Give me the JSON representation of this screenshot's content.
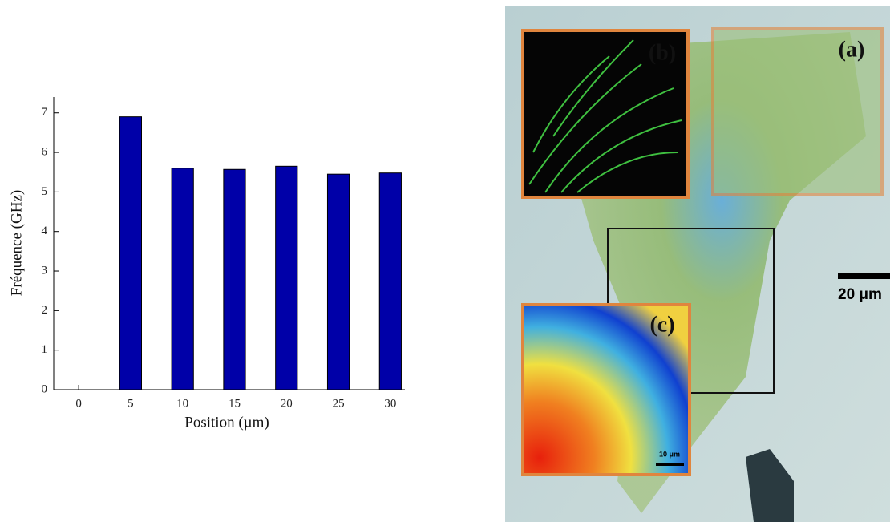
{
  "chart_data": {
    "type": "bar",
    "x_label": "Position (µm)",
    "y_label": "Fréquence (GHz)",
    "x": [
      5,
      10,
      15,
      20,
      25,
      30
    ],
    "values": [
      6.9,
      5.6,
      5.57,
      5.65,
      5.45,
      5.48
    ],
    "color": "#0000a8",
    "xlim": [
      -2.4,
      31.4
    ],
    "xticks": [
      0,
      5,
      10,
      15,
      20,
      25,
      30
    ],
    "ylim": [
      0,
      7.4
    ],
    "yticks": [
      0,
      1,
      2,
      3,
      4,
      5,
      6,
      7
    ]
  },
  "image": {
    "panels": [
      "(b)",
      "(a)",
      "(c)"
    ],
    "scale_bar": "20 μm",
    "inset_scale_bar": "10 μm"
  }
}
